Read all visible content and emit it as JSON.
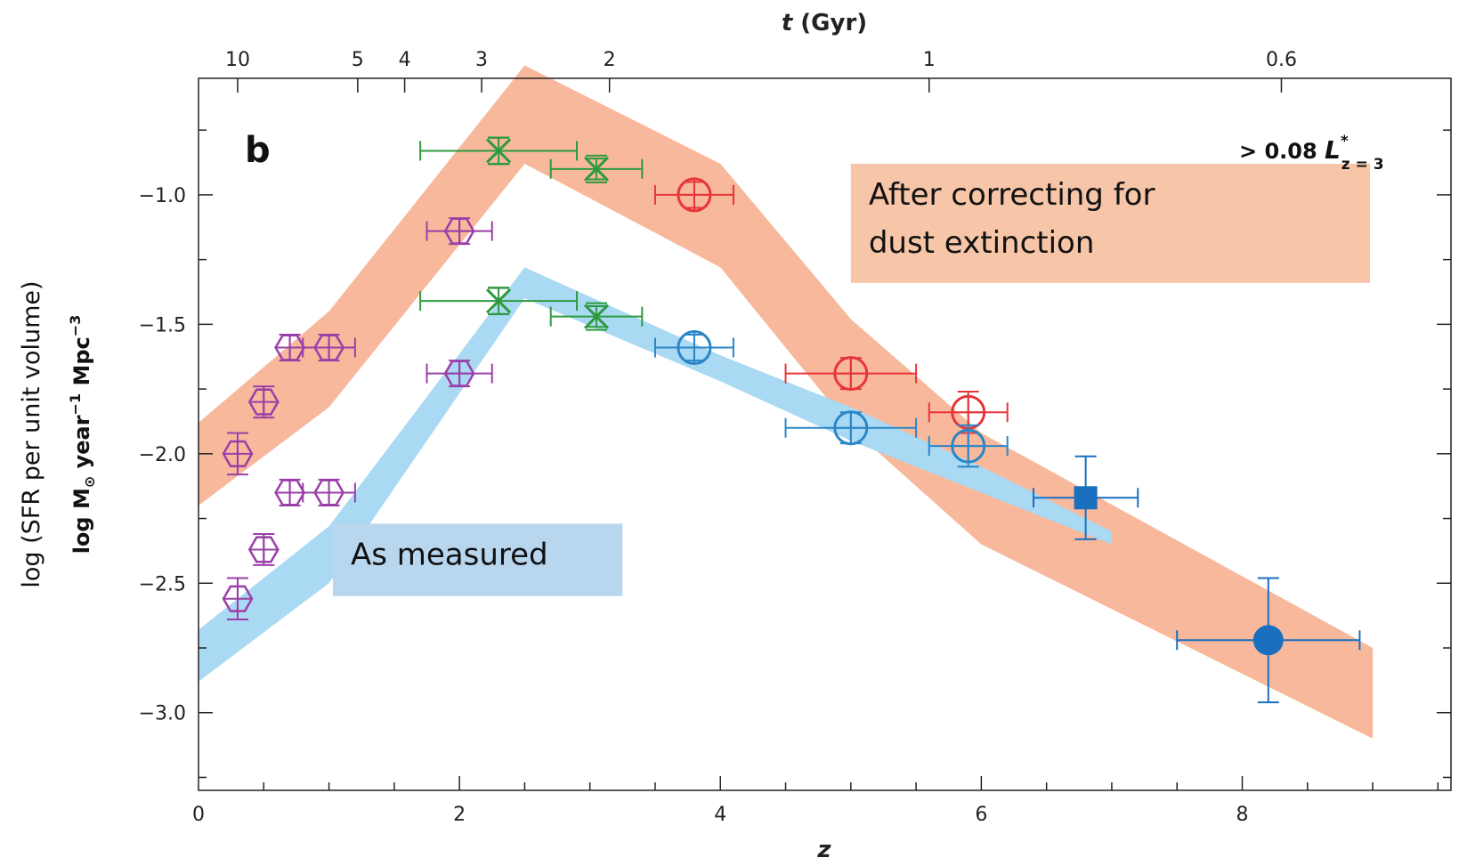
{
  "chart_data": {
    "type": "scatter",
    "panel_label": "b",
    "luminosity_cut": {
      "prefix": "> 0.08 ",
      "symbol": "L",
      "sup": "*",
      "sub": "z = 3"
    },
    "xlabel": "z",
    "ylabel_line1": "log (SFR per unit volume)",
    "ylabel_line2": {
      "pre": "log M",
      "sun": "⊙",
      "mid": " year",
      "sup1": "−1",
      "mid2": " Mpc",
      "sup2": "−3"
    },
    "top_axis_label": {
      "var": "t",
      "unit": " (Gyr)"
    },
    "xlim": [
      0,
      9.6
    ],
    "ylim": [
      -3.3,
      -0.55
    ],
    "x_ticks": [
      0,
      2,
      4,
      6,
      8
    ],
    "x_tick_labels": [
      "0",
      "2",
      "4",
      "6",
      "8"
    ],
    "y_ticks": [
      -1.0,
      -1.5,
      -2.0,
      -2.5,
      -3.0
    ],
    "y_tick_labels": [
      "−1.0",
      "−1.5",
      "−2.0",
      "−2.5",
      "−3.0"
    ],
    "top_ticks": [
      {
        "label": "10",
        "z": 0.3
      },
      {
        "label": "5",
        "z": 1.22
      },
      {
        "label": "4",
        "z": 1.58
      },
      {
        "label": "3",
        "z": 2.17
      },
      {
        "label": "2",
        "z": 3.15
      },
      {
        "label": "1",
        "z": 5.6
      },
      {
        "label": "0.6",
        "z": 8.3
      }
    ],
    "bands": [
      {
        "name": "dust-corrected",
        "color": "#f7b89c",
        "upper": [
          [
            0,
            -1.88
          ],
          [
            1,
            -1.45
          ],
          [
            2.5,
            -0.5
          ],
          [
            4,
            -0.88
          ],
          [
            5,
            -1.48
          ],
          [
            6,
            -1.92
          ],
          [
            9,
            -2.75
          ]
        ],
        "lower": [
          [
            0,
            -2.2
          ],
          [
            1,
            -1.82
          ],
          [
            2.5,
            -0.88
          ],
          [
            4,
            -1.28
          ],
          [
            5,
            -1.9
          ],
          [
            6,
            -2.35
          ],
          [
            9,
            -3.1
          ]
        ]
      },
      {
        "name": "as-measured",
        "color": "#a9d9f3",
        "upper": [
          [
            0,
            -2.68
          ],
          [
            1,
            -2.28
          ],
          [
            2.5,
            -1.28
          ],
          [
            4,
            -1.62
          ],
          [
            5,
            -1.82
          ],
          [
            6,
            -2.05
          ],
          [
            7,
            -2.3
          ]
        ],
        "lower": [
          [
            0,
            -2.88
          ],
          [
            1,
            -2.5
          ],
          [
            2.5,
            -1.4
          ],
          [
            4,
            -1.72
          ],
          [
            5,
            -1.95
          ],
          [
            6,
            -2.15
          ],
          [
            7,
            -2.35
          ]
        ]
      }
    ],
    "series": [
      {
        "marker": "hexagon",
        "color": "#9b3fa8",
        "points": [
          {
            "x": 0.3,
            "y": -2.0,
            "xerr": 0,
            "yerr": 0.08
          },
          {
            "x": 0.5,
            "y": -1.8,
            "xerr": 0,
            "yerr": 0.06
          },
          {
            "x": 0.7,
            "y": -1.59,
            "xerr": 0,
            "yerr": 0.05
          },
          {
            "x": 1.0,
            "y": -1.59,
            "xerr": 0.2,
            "yerr": 0.05
          },
          {
            "x": 2.0,
            "y": -1.14,
            "xerr": 0.25,
            "yerr": 0.05
          },
          {
            "x": 0.3,
            "y": -2.56,
            "xerr": 0,
            "yerr": 0.08
          },
          {
            "x": 0.5,
            "y": -2.37,
            "xerr": 0,
            "yerr": 0.06
          },
          {
            "x": 0.7,
            "y": -2.15,
            "xerr": 0,
            "yerr": 0.05
          },
          {
            "x": 1.0,
            "y": -2.15,
            "xerr": 0.2,
            "yerr": 0.05
          },
          {
            "x": 2.0,
            "y": -1.69,
            "xerr": 0.25,
            "yerr": 0.05
          }
        ]
      },
      {
        "marker": "x",
        "color": "#2e9a3f",
        "points": [
          {
            "x": 2.3,
            "y": -0.83,
            "xerr": 0.6,
            "yerr": 0.05
          },
          {
            "x": 3.05,
            "y": -0.9,
            "xerr": 0.35,
            "yerr": 0.04
          },
          {
            "x": 2.3,
            "y": -1.41,
            "xerr": 0.6,
            "yerr": 0.05
          },
          {
            "x": 3.05,
            "y": -1.47,
            "xerr": 0.35,
            "yerr": 0.04
          }
        ]
      },
      {
        "marker": "circle-cross",
        "color": "#e8343a",
        "points": [
          {
            "x": 3.8,
            "y": -1.0,
            "xerr": 0.3,
            "yerr": 0.05
          },
          {
            "x": 5.0,
            "y": -1.69,
            "xerr": 0.5,
            "yerr": 0.06
          },
          {
            "x": 5.9,
            "y": -1.84,
            "xerr": 0.3,
            "yerr": 0.08
          }
        ]
      },
      {
        "marker": "circle-cross",
        "color": "#2a86c8",
        "points": [
          {
            "x": 3.8,
            "y": -1.59,
            "xerr": 0.3,
            "yerr": 0.05
          },
          {
            "x": 5.0,
            "y": -1.9,
            "xerr": 0.5,
            "yerr": 0.06
          },
          {
            "x": 5.9,
            "y": -1.97,
            "xerr": 0.3,
            "yerr": 0.08
          }
        ]
      },
      {
        "marker": "square-filled",
        "color": "#1a6fbf",
        "points": [
          {
            "x": 6.8,
            "y": -2.17,
            "xerr": 0.4,
            "yerr": 0.16
          }
        ]
      },
      {
        "marker": "circle-filled",
        "color": "#1a6fbf",
        "points": [
          {
            "x": 8.2,
            "y": -2.72,
            "xerr": 0.7,
            "yerr": 0.24
          }
        ]
      }
    ],
    "annotations": [
      {
        "lines": [
          "After correcting for",
          "dust extinction"
        ],
        "color": "#f7c6a8"
      },
      {
        "lines": [
          "As measured"
        ],
        "color": "#b9d6ef"
      }
    ]
  }
}
